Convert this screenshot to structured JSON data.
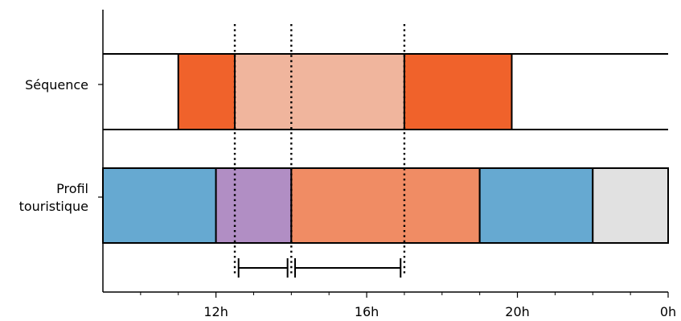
{
  "chart_data": {
    "type": "timeline",
    "title": "",
    "xlabel": "",
    "ylabel": "",
    "x_range": [
      9,
      24
    ],
    "x_ticks": [
      {
        "value": 12,
        "label": "12h"
      },
      {
        "value": 16,
        "label": "16h"
      },
      {
        "value": 20,
        "label": "20h"
      },
      {
        "value": 24,
        "label": "0h"
      }
    ],
    "x_minor_ticks": [
      10,
      11,
      13,
      14,
      15,
      17,
      18,
      19,
      21,
      22,
      23
    ],
    "rows": [
      {
        "key": "sequence",
        "label_lines": [
          "Séquence"
        ],
        "segments": [
          {
            "start": 11.0,
            "end": 12.5,
            "color": "#f0622b"
          },
          {
            "start": 12.5,
            "end": 17.0,
            "color": "#f0b59d"
          },
          {
            "start": 17.0,
            "end": 19.85,
            "color": "#f0622b"
          }
        ]
      },
      {
        "key": "profile",
        "label_lines": [
          "Profil",
          "touristique"
        ],
        "segments": [
          {
            "start": 9.0,
            "end": 12.0,
            "color": "#66a9d1"
          },
          {
            "start": 12.0,
            "end": 14.0,
            "color": "#b18ec4"
          },
          {
            "start": 14.0,
            "end": 19.0,
            "color": "#f08c64"
          },
          {
            "start": 19.0,
            "end": 22.0,
            "color": "#66a9d1"
          },
          {
            "start": 22.0,
            "end": 24.0,
            "color": "#e1e1e1"
          }
        ]
      }
    ],
    "dotted_lines": [
      12.5,
      14.0,
      17.0
    ],
    "intervals": [
      {
        "start": 12.6,
        "end": 13.9
      },
      {
        "start": 14.1,
        "end": 16.9
      }
    ]
  }
}
